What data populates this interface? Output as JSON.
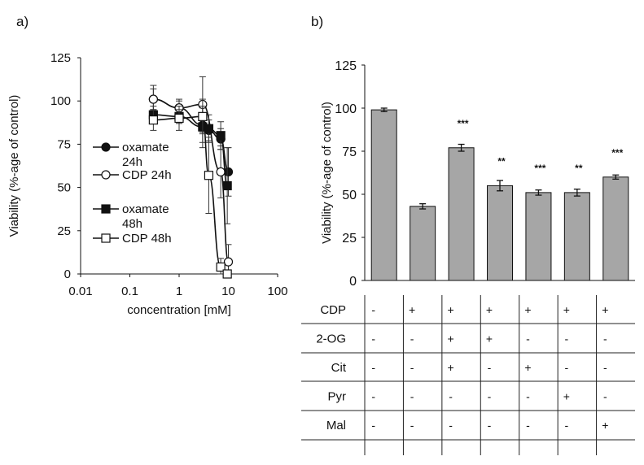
{
  "chart_data": [
    {
      "panel_label": "a)",
      "type": "scatter",
      "xscale": "log",
      "xlabel": "concentration [mM]",
      "ylabel": "Viability (%-age of control)",
      "xlim": [
        0.01,
        100
      ],
      "ylim": [
        0,
        125
      ],
      "xticks": [
        "0.01",
        "0.1",
        "1",
        "10",
        "100"
      ],
      "yticks": [
        "0",
        "25",
        "50",
        "75",
        "100",
        "125"
      ],
      "legend_position": "left-middle",
      "series": [
        {
          "name": "oxamate 24h",
          "legend_lines": [
            "oxamate",
            "24h"
          ],
          "marker": "circle",
          "fill": "#111111",
          "x": [
            0.3,
            1,
            3,
            4,
            7,
            10
          ],
          "y": [
            101,
            96,
            86,
            83,
            78,
            59
          ],
          "err": [
            8,
            4,
            10,
            6,
            6,
            14
          ]
        },
        {
          "name": "CDP 24h",
          "legend_lines": [
            "CDP 24h"
          ],
          "marker": "circle",
          "fill": "#ffffff",
          "x": [
            0.3,
            1,
            3,
            7,
            10
          ],
          "y": [
            101,
            96,
            98,
            59,
            7
          ],
          "err": [
            6,
            5,
            16,
            15,
            10
          ]
        },
        {
          "name": "oxamate 48h",
          "legend_lines": [
            "oxamate",
            "48h"
          ],
          "marker": "square",
          "fill": "#111111",
          "x": [
            0.3,
            1,
            3,
            4,
            7,
            9.5
          ],
          "y": [
            92,
            91,
            85,
            84,
            80,
            51
          ],
          "err": [
            5,
            4,
            12,
            8,
            8,
            22
          ]
        },
        {
          "name": "CDP 48h",
          "legend_lines": [
            "CDP 48h"
          ],
          "marker": "square",
          "fill": "#ffffff",
          "x": [
            0.3,
            1,
            3,
            4,
            7,
            9.5
          ],
          "y": [
            89,
            90,
            91,
            57,
            4,
            0
          ],
          "err": [
            6,
            7,
            10,
            22,
            5,
            2
          ]
        }
      ]
    },
    {
      "panel_label": "b)",
      "type": "bar",
      "ylabel": "Viability (%-age of control)",
      "ylim": [
        0,
        125
      ],
      "yticks": [
        "0",
        "25",
        "50",
        "75",
        "100",
        "125"
      ],
      "bar_color": "#a6a6a6",
      "values": [
        99,
        43,
        77,
        55,
        51,
        51,
        60
      ],
      "errors": [
        1,
        1.5,
        2,
        3,
        1.5,
        2,
        1.2
      ],
      "significance": [
        "",
        "",
        "***",
        "**",
        "***",
        "**",
        "***"
      ],
      "table": {
        "rows": [
          {
            "label": "CDP",
            "cells": [
              "-",
              "+",
              "+",
              "+",
              "+",
              "+",
              "+"
            ]
          },
          {
            "label": "2-OG",
            "cells": [
              "-",
              "-",
              "+",
              "+",
              "-",
              "-",
              "-"
            ]
          },
          {
            "label": "Cit",
            "cells": [
              "-",
              "-",
              "+",
              "-",
              "+",
              "-",
              "-"
            ]
          },
          {
            "label": "Pyr",
            "cells": [
              "-",
              "-",
              "-",
              "-",
              "-",
              "+",
              "-"
            ]
          },
          {
            "label": "Mal",
            "cells": [
              "-",
              "-",
              "-",
              "-",
              "-",
              "-",
              "+"
            ]
          }
        ]
      }
    }
  ]
}
